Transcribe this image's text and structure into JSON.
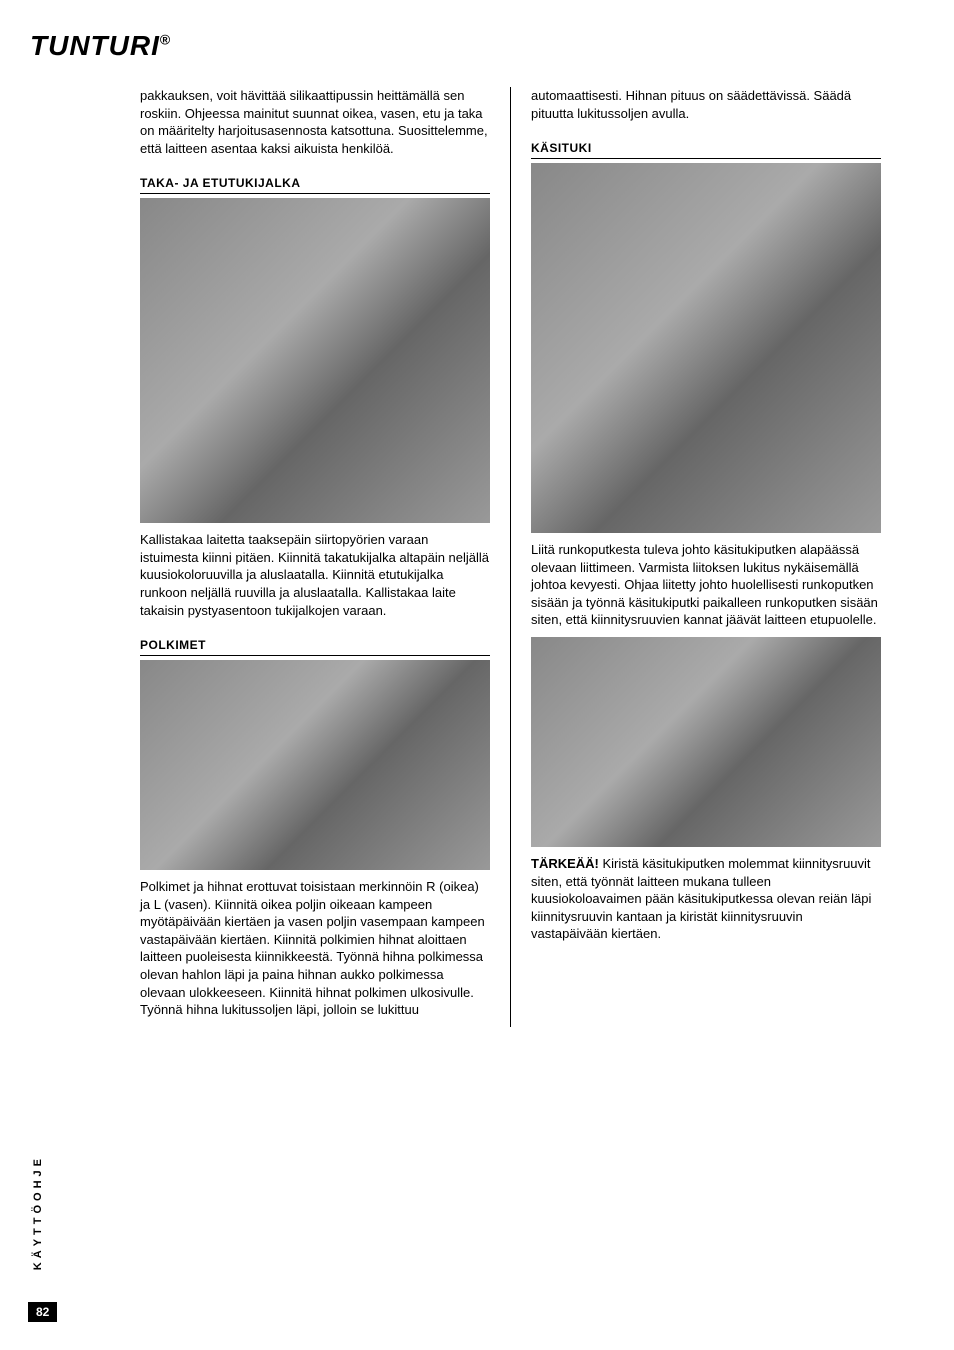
{
  "logo": "TUNTURI",
  "logo_r": "®",
  "sidebar": "KÄYTTÖOHJE",
  "page_number": "82",
  "left": {
    "intro": "pakkauksen, voit hävittää silikaattipussin heittämällä sen roskiin. Ohjeessa mainitut suunnat oikea, vasen, etu ja taka on määritelty harjoitusasennosta katsottuna. Suosittelemme, että laitteen asentaa kaksi aikuista henkilöä.",
    "h1": "TAKA- JA ETUTUKIJALKA",
    "p1": "Kallistakaa laitetta taaksepäin siirtopyörien varaan istuimesta kiinni pitäen. Kiinnitä takatukijalka altapäin neljällä kuusiokoloruuvilla ja aluslaatalla. Kiinnitä etutukijalka runkoon neljällä ruuvilla ja aluslaatalla. Kallistakaa laite takaisin pystyasentoon tukijalkojen varaan.",
    "h2": "POLKIMET",
    "p2": "Polkimet ja hihnat erottuvat toisistaan merkinnöin R (oikea) ja L (vasen). Kiinnitä oikea poljin oikeaan kampeen myötäpäivään kiertäen ja vasen poljin vasempaan kampeen vastapäivään kiertäen. Kiinnitä polkimien hihnat aloittaen laitteen puoleisesta kiinnikkeestä. Työnnä hihna polkimessa olevan hahlon läpi ja paina hihnan aukko polkimessa olevaan ulokkeeseen. Kiinnitä hihnat polkimen ulkosivulle. Työnnä hihna lukitussoljen läpi, jolloin se lukittuu"
  },
  "right": {
    "intro": "automaattisesti. Hihnan pituus on säädettävissä. Säädä pituutta lukitussoljen avulla.",
    "h1": "KÄSITUKI",
    "p1": "Liitä runkoputkesta tuleva johto käsitukiputken alapäässä olevaan liittimeen. Varmista liitoksen lukitus nykäisemällä johtoa kevyesti. Ohjaa liitetty johto huolellisesti runkoputken sisään ja työnnä käsitukiputki paikalleen runkoputken sisään siten, että kiinnitysruuvien kannat jäävät laitteen etupuolelle.",
    "p2_label": "TÄRKEÄÄ!",
    "p2": " Kiristä käsitukiputken molemmat kiinnitysruuvit siten, että työnnät laitteen mukana tulleen kuusiokoloavaimen pään käsitukiputkessa olevan reiän läpi kiinnitysruuvin kantaan ja kiristät kiinnitysruuvin vastapäivään kiertäen."
  }
}
